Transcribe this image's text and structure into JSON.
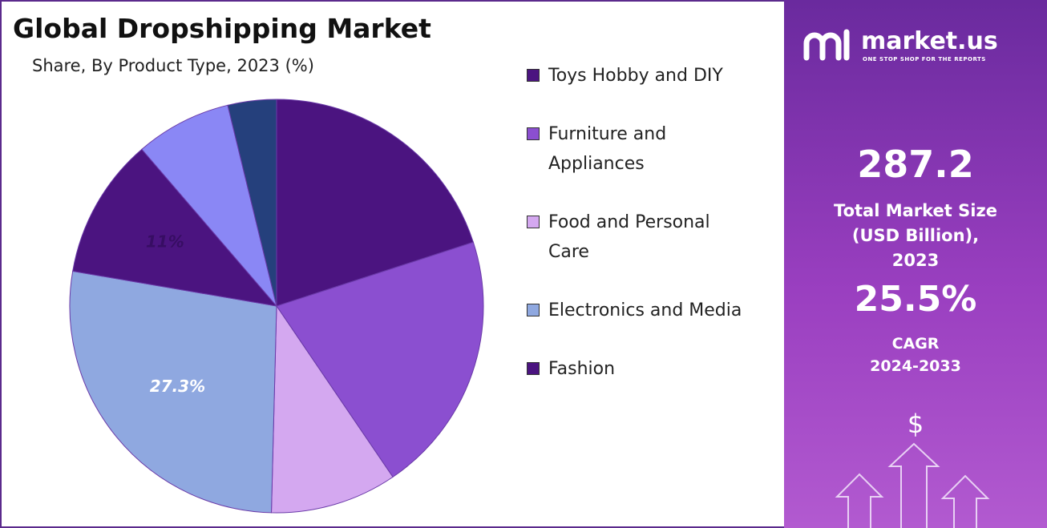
{
  "chart_data": {
    "type": "pie",
    "title": "Global Dropshipping Market",
    "subtitle": "Share, By Product Type, 2023 (%)",
    "categories": [
      "Toys Hobby and DIY",
      "Furniture and Appliances",
      "Food and Personal Care",
      "Electronics and Media",
      "Fashion",
      null,
      null
    ],
    "values": [
      20,
      20.5,
      9.9,
      27.3,
      11,
      7.5,
      3.8
    ],
    "value_labels": [
      null,
      null,
      null,
      "27.3%",
      "11%",
      null,
      null
    ],
    "colors": [
      "#4b1480",
      "#8b4fd0",
      "#d4a8f0",
      "#8fa8e0",
      "#4b1480",
      "#8a87f5",
      "#25407c"
    ],
    "legend_count": 5
  },
  "sidebar": {
    "brand": "market.us",
    "tagline": "ONE STOP SHOP FOR THE REPORTS",
    "market_size": "287.2",
    "market_size_label": "Total Market Size (USD Billion), 2023",
    "cagr": "25.5%",
    "cagr_label": "CAGR",
    "cagr_period": "2024-2033",
    "currency": "$"
  }
}
